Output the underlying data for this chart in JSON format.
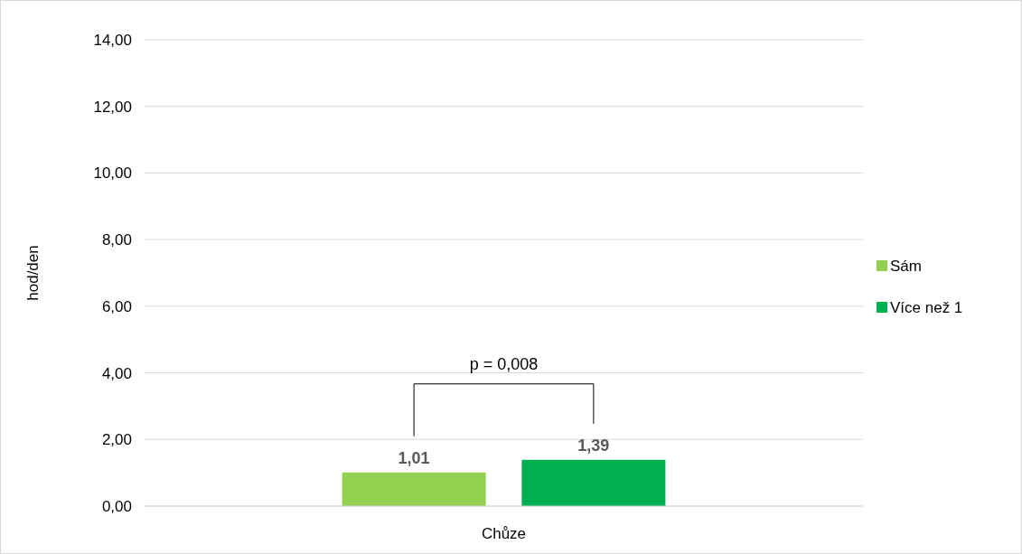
{
  "chart_data": {
    "type": "bar",
    "categories": [
      "Chůze"
    ],
    "ylabel": "hod/den",
    "series": [
      {
        "name": "Sám",
        "color": "#92d050",
        "values": [
          1.01
        ],
        "value_labels": [
          "1,01"
        ]
      },
      {
        "name": "Více než 1",
        "color": "#00b050",
        "values": [
          1.39
        ],
        "value_labels": [
          "1,39"
        ]
      }
    ],
    "ylim": [
      0,
      14
    ],
    "yticks": [
      {
        "value": 0,
        "label": "0,00"
      },
      {
        "value": 2,
        "label": "2,00"
      },
      {
        "value": 4,
        "label": "4,00"
      },
      {
        "value": 6,
        "label": "6,00"
      },
      {
        "value": 8,
        "label": "8,00"
      },
      {
        "value": 10,
        "label": "10,00"
      },
      {
        "value": 12,
        "label": "12,00"
      },
      {
        "value": 14,
        "label": "14,00"
      }
    ],
    "grid": "y",
    "legend": "right",
    "annotations": [
      "p = 0,008"
    ]
  }
}
